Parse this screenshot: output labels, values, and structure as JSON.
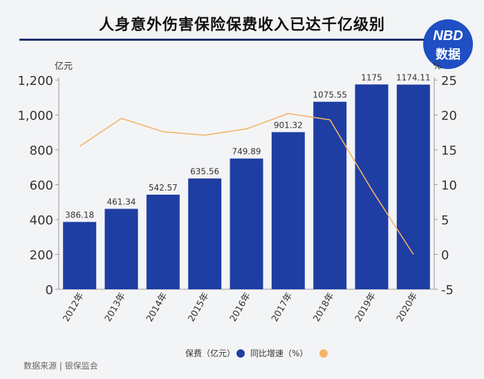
{
  "title": "人身意外伤害保险保费收入已达千亿级别",
  "logo": {
    "line1": "NBD",
    "line2": "数据"
  },
  "footer": {
    "source": "数据来源 | 银保监会"
  },
  "colors": {
    "bar": "#1f3ea3",
    "line": "#f5b367",
    "axis": "#333333",
    "rule": "#1b2f6b"
  },
  "chart_data": {
    "type": "bar",
    "title": "人身意外伤害保险保费收入已达千亿级别",
    "categories": [
      "2012年",
      "2013年",
      "2014年",
      "2015年",
      "2016年",
      "2017年",
      "2018年",
      "2019年",
      "2020年"
    ],
    "series": [
      {
        "name": "保费（亿元）",
        "type": "bar",
        "axis": "left",
        "values": [
          386.18,
          461.34,
          542.57,
          635.56,
          749.89,
          901.32,
          1075.55,
          1175,
          1174.11
        ],
        "labels": [
          "386.18",
          "461.34",
          "542.57",
          "635.56",
          "749.89",
          "901.32",
          "1075.55",
          "1175",
          "1174.11"
        ]
      },
      {
        "name": "同比增速（%）",
        "type": "line",
        "axis": "right",
        "values": [
          15.5,
          19.5,
          17.6,
          17.1,
          18.0,
          20.2,
          19.3,
          9.3,
          0.0
        ]
      }
    ],
    "ylabel": "亿元",
    "ylim": [
      0,
      1200
    ],
    "yticks": [
      0,
      200,
      400,
      600,
      800,
      1000,
      1200
    ],
    "ytick_labels": [
      "0",
      "200",
      "400",
      "600",
      "800",
      "1,000",
      "1,200"
    ],
    "y2label": "%",
    "y2lim": [
      -5,
      25
    ],
    "y2ticks": [
      -5,
      0,
      5,
      10,
      15,
      20,
      25
    ],
    "legend": {
      "position": "bottom",
      "bar_label": "保费（亿元）",
      "line_label": "同比增速（%）"
    },
    "grid": false
  }
}
